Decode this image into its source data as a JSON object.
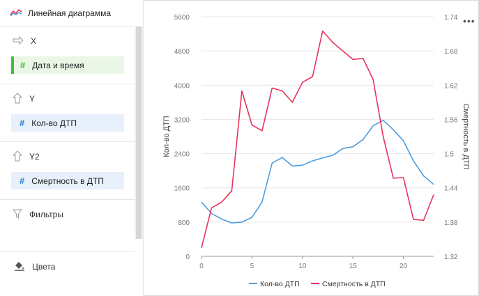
{
  "sidebar": {
    "chart_type_label": "Линейная диаграмма",
    "x_section": {
      "label": "X",
      "field": "Дата и время"
    },
    "y_section": {
      "label": "Y",
      "field": "Кол-во ДТП"
    },
    "y2_section": {
      "label": "Y2",
      "field": "Смертность в ДТП"
    },
    "filters_label": "Фильтры",
    "colors_label": "Цвета"
  },
  "toolbar": {
    "more_label": "•••"
  },
  "colors": {
    "series1": "#4d9de0",
    "series2": "#e8335a",
    "accent_green": "#3dbf3d"
  },
  "chart_data": {
    "type": "line",
    "x": [
      0,
      1,
      2,
      3,
      4,
      5,
      6,
      7,
      8,
      9,
      10,
      11,
      12,
      13,
      14,
      15,
      16,
      17,
      18,
      19,
      20,
      21,
      22,
      23
    ],
    "x_ticks": [
      "0",
      "5",
      "10",
      "15",
      "20"
    ],
    "y_ticks": [
      "0",
      "800",
      "1600",
      "2400",
      "3200",
      "4000",
      "4800",
      "5600"
    ],
    "y2_ticks": [
      "1.32",
      "1.38",
      "1.44",
      "1.5",
      "1.56",
      "1.62",
      "1.68",
      "1.74"
    ],
    "ylim": [
      0,
      5600
    ],
    "y2lim": [
      1.32,
      1.74
    ],
    "ylabel": "Кол-во ДТП",
    "y2label": "Смертность в ДТП",
    "legend_position": "bottom",
    "grid": true,
    "series": [
      {
        "name": "Кол-во ДТП",
        "axis": "left",
        "values": [
          1270,
          1000,
          870,
          780,
          800,
          910,
          1270,
          2180,
          2310,
          2110,
          2130,
          2230,
          2300,
          2360,
          2520,
          2560,
          2730,
          3050,
          3180,
          2960,
          2700,
          2230,
          1880,
          1680
        ]
      },
      {
        "name": "Смертность в ДТП",
        "axis": "right",
        "values": [
          1.335,
          1.405,
          1.415,
          1.435,
          1.61,
          1.55,
          1.54,
          1.615,
          1.61,
          1.59,
          1.625,
          1.635,
          1.715,
          1.695,
          1.68,
          1.665,
          1.667,
          1.63,
          1.53,
          1.457,
          1.458,
          1.385,
          1.383,
          1.428
        ]
      }
    ]
  }
}
